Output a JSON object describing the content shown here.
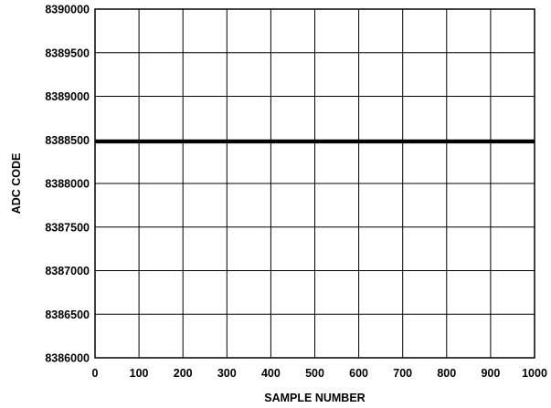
{
  "chart_data": {
    "type": "line",
    "title": "",
    "xlabel": "SAMPLE NUMBER",
    "ylabel": "ADC CODE",
    "xlim": [
      0,
      1000
    ],
    "ylim": [
      8386000,
      8390000
    ],
    "xticks": [
      0,
      100,
      200,
      300,
      400,
      500,
      600,
      700,
      800,
      900,
      1000
    ],
    "yticks": [
      8386000,
      8386500,
      8387000,
      8387500,
      8388000,
      8388500,
      8389000,
      8389500,
      8390000
    ],
    "xtick_labels": [
      "0",
      "100",
      "200",
      "300",
      "400",
      "500",
      "600",
      "700",
      "800",
      "900",
      "1000"
    ],
    "ytick_labels": [
      "8386000",
      "8386500",
      "8387000",
      "8387500",
      "8388000",
      "8388500",
      "8389000",
      "8389500",
      "8390000"
    ],
    "grid": true,
    "legend": "none",
    "series": [
      {
        "x": [
          0,
          1000
        ],
        "y": [
          8388480,
          8388480
        ],
        "color": "#000000"
      }
    ]
  }
}
